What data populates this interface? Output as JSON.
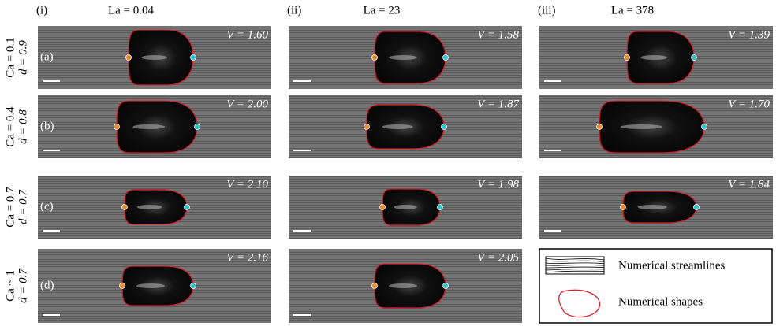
{
  "columns": [
    {
      "index": "(i)",
      "label": "La = 0.04"
    },
    {
      "index": "(ii)",
      "label": "La = 23"
    },
    {
      "index": "(iii)",
      "label": "La = 378"
    }
  ],
  "rows": [
    {
      "ca": "Ca = 0.1",
      "d": "d = 0.9",
      "letter": "(a)"
    },
    {
      "ca": "Ca = 0.4",
      "d": "d = 0.8",
      "letter": "(b)"
    },
    {
      "ca": "Ca = 0.7",
      "d": "d = 0.7",
      "letter": "(c)"
    },
    {
      "ca": "Ca ~ 1",
      "d": "d = 0.7",
      "letter": "(d)"
    }
  ],
  "panels": [
    [
      "V = 1.60",
      "V = 1.58",
      "V = 1.39"
    ],
    [
      "V = 2.00",
      "V = 1.87",
      "V = 1.70"
    ],
    [
      "V = 2.10",
      "V = 1.98",
      "V = 1.84"
    ],
    [
      "V = 2.16",
      "V = 2.05"
    ]
  ],
  "legend": {
    "streamlines": "Numerical streamlines",
    "shapes": "Numerical shapes"
  }
}
